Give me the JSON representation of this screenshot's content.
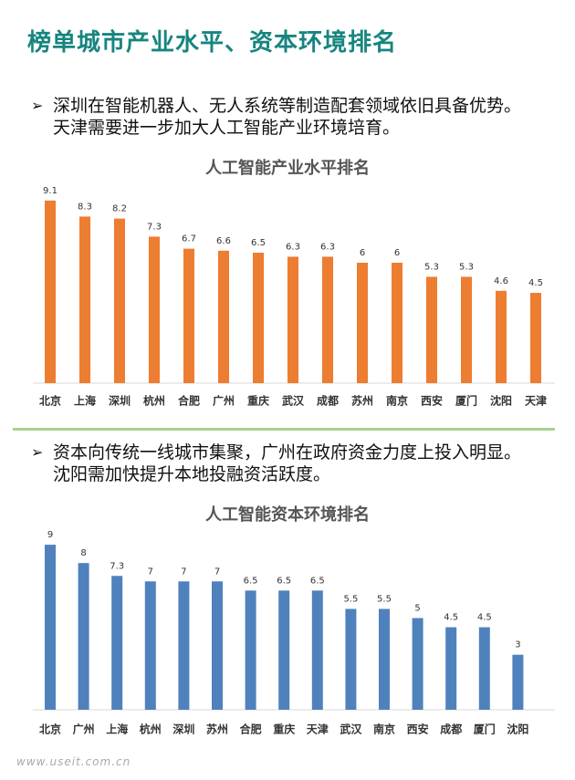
{
  "header": {
    "title": "榜单城市产业水平、资本环境排名"
  },
  "sections": [
    {
      "bullet": "深圳在智能机器人、无人系统等制造配套领域依旧具备优势。天津需要进一步加大人工智能产业环境培育。"
    },
    {
      "bullet": "资本向传统一线城市集聚，广州在政府资金力度上投入明显。沈阳需加快提升本地投融资活跃度。"
    }
  ],
  "chart_data": [
    {
      "type": "bar",
      "title": "人工智能产业水平排名",
      "categories": [
        "北京",
        "上海",
        "深圳",
        "杭州",
        "合肥",
        "广州",
        "重庆",
        "武汉",
        "成都",
        "苏州",
        "南京",
        "西安",
        "厦门",
        "沈阳",
        "天津"
      ],
      "values": [
        9.1,
        8.3,
        8.2,
        7.3,
        6.7,
        6.6,
        6.5,
        6.3,
        6.3,
        6,
        6,
        5.3,
        5.3,
        4.6,
        4.5
      ],
      "color": "#ed7d31",
      "ylim": [
        0,
        10
      ]
    },
    {
      "type": "bar",
      "title": "人工智能资本环境排名",
      "categories": [
        "北京",
        "广州",
        "上海",
        "杭州",
        "深圳",
        "苏州",
        "合肥",
        "重庆",
        "天津",
        "武汉",
        "南京",
        "西安",
        "成都",
        "厦门",
        "沈阳"
      ],
      "values": [
        9,
        8,
        7.3,
        7,
        7,
        7,
        6.5,
        6.5,
        6.5,
        5.5,
        5.5,
        5,
        4.5,
        4.5,
        3
      ],
      "color": "#4f81bd",
      "ylim": [
        0,
        10
      ]
    }
  ],
  "watermark": "www.useit.com.cn"
}
